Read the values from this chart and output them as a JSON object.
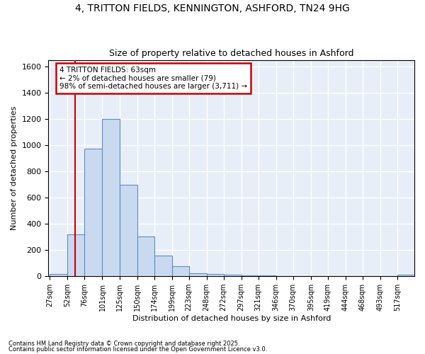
{
  "title_line1": "4, TRITTON FIELDS, KENNINGTON, ASHFORD, TN24 9HG",
  "title_line2": "Size of property relative to detached houses in Ashford",
  "xlabel": "Distribution of detached houses by size in Ashford",
  "ylabel": "Number of detached properties",
  "bin_edges": [
    27,
    52,
    76,
    101,
    125,
    150,
    174,
    199,
    223,
    248,
    272,
    297,
    321,
    346,
    370,
    395,
    419,
    444,
    468,
    493,
    517
  ],
  "bar_heights": [
    20,
    320,
    975,
    1200,
    700,
    305,
    160,
    75,
    25,
    15,
    10,
    5,
    5,
    2,
    2,
    2,
    2,
    2,
    2,
    2,
    10
  ],
  "bar_color": "#c9d9f0",
  "bar_edge_color": "#5b8ec4",
  "red_line_x": 63,
  "red_line_color": "#cc0000",
  "ylim": [
    0,
    1650
  ],
  "yticks": [
    0,
    200,
    400,
    600,
    800,
    1000,
    1200,
    1400,
    1600
  ],
  "annotation_text": "4 TRITTON FIELDS: 63sqm\n← 2% of detached houses are smaller (79)\n98% of semi-detached houses are larger (3,711) →",
  "annotation_box_color": "#ffffff",
  "annotation_border_color": "#cc0000",
  "plot_bg_color": "#e8eef8",
  "fig_bg_color": "#ffffff",
  "grid_color": "#ffffff",
  "footnote1": "Contains HM Land Registry data © Crown copyright and database right 2025.",
  "footnote2": "Contains public sector information licensed under the Open Government Licence v3.0."
}
